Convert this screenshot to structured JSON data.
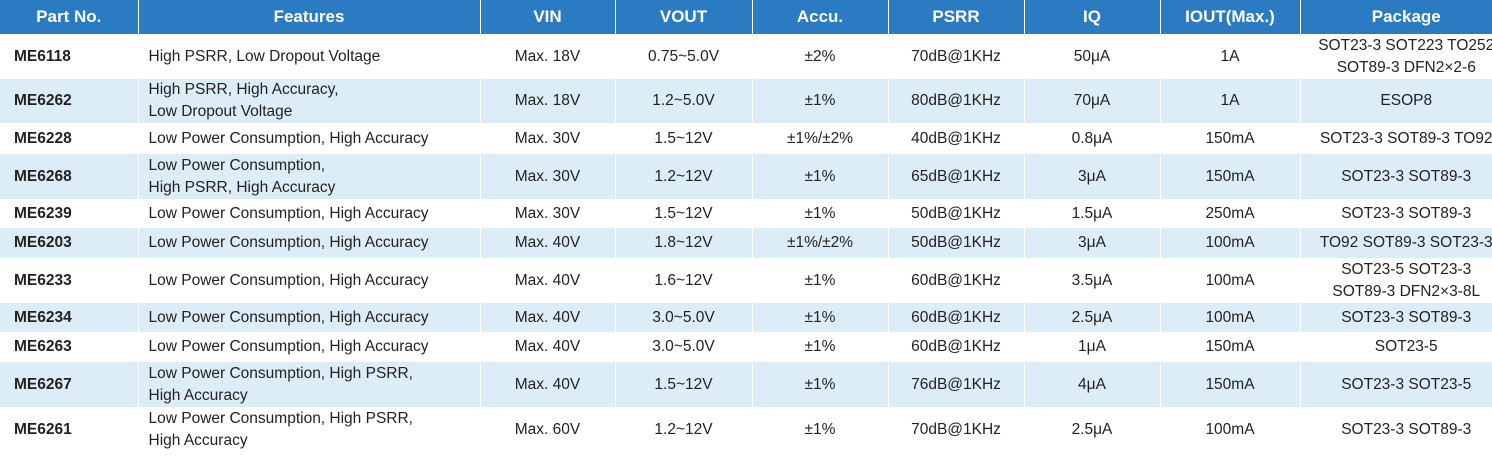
{
  "headers": [
    "Part No.",
    "Features",
    "VIN",
    "VOUT",
    "Accu.",
    "PSRR",
    "IQ",
    "IOUT(Max.)",
    "Package"
  ],
  "rows": [
    {
      "part": "ME6118",
      "features": "High PSRR, Low Dropout Voltage",
      "vin": "Max. 18V",
      "vout": "0.75~5.0V",
      "accu": "±2%",
      "psrr": "70dB@1KHz",
      "iq": "50μA",
      "iout": "1A",
      "package": "SOT23-3 SOT223 TO252\nSOT89-3 DFN2×2-6"
    },
    {
      "part": "ME6262",
      "features": "High PSRR, High Accuracy,\nLow Dropout Voltage",
      "vin": "Max. 18V",
      "vout": "1.2~5.0V",
      "accu": "±1%",
      "psrr": "80dB@1KHz",
      "iq": "70μA",
      "iout": "1A",
      "package": "ESOP8"
    },
    {
      "part": "ME6228",
      "features": "Low Power Consumption, High Accuracy",
      "vin": "Max. 30V",
      "vout": "1.5~12V",
      "accu": "±1%/±2%",
      "psrr": "40dB@1KHz",
      "iq": "0.8μA",
      "iout": "150mA",
      "package": "SOT23-3 SOT89-3 TO92"
    },
    {
      "part": "ME6268",
      "features": "Low Power Consumption,\nHigh PSRR, High Accuracy",
      "vin": "Max. 30V",
      "vout": "1.2~12V",
      "accu": "±1%",
      "psrr": "65dB@1KHz",
      "iq": "3μA",
      "iout": "150mA",
      "package": "SOT23-3 SOT89-3"
    },
    {
      "part": "ME6239",
      "features": "Low Power Consumption, High Accuracy",
      "vin": "Max. 30V",
      "vout": "1.5~12V",
      "accu": "±1%",
      "psrr": "50dB@1KHz",
      "iq": "1.5μA",
      "iout": "250mA",
      "package": "SOT23-3 SOT89-3"
    },
    {
      "part": "ME6203",
      "features": "Low Power Consumption, High Accuracy",
      "vin": "Max. 40V",
      "vout": "1.8~12V",
      "accu": "±1%/±2%",
      "psrr": "50dB@1KHz",
      "iq": "3μA",
      "iout": "100mA",
      "package": "TO92 SOT89-3 SOT23-3"
    },
    {
      "part": "ME6233",
      "features": "Low Power Consumption, High Accuracy",
      "vin": "Max. 40V",
      "vout": "1.6~12V",
      "accu": "±1%",
      "psrr": "60dB@1KHz",
      "iq": "3.5μA",
      "iout": "100mA",
      "package": "SOT23-5 SOT23-3\nSOT89-3 DFN2×3-8L"
    },
    {
      "part": "ME6234",
      "features": "Low Power Consumption, High Accuracy",
      "vin": "Max. 40V",
      "vout": "3.0~5.0V",
      "accu": "±1%",
      "psrr": "60dB@1KHz",
      "iq": "2.5μA",
      "iout": "100mA",
      "package": "SOT23-3 SOT89-3"
    },
    {
      "part": "ME6263",
      "features": "Low Power Consumption, High Accuracy",
      "vin": "Max. 40V",
      "vout": "3.0~5.0V",
      "accu": "±1%",
      "psrr": "60dB@1KHz",
      "iq": "1μA",
      "iout": "150mA",
      "package": "SOT23-5"
    },
    {
      "part": "ME6267",
      "features": "Low Power Consumption, High PSRR,\nHigh Accuracy",
      "vin": "Max. 40V",
      "vout": "1.5~12V",
      "accu": "±1%",
      "psrr": "76dB@1KHz",
      "iq": "4μA",
      "iout": "150mA",
      "package": "SOT23-3 SOT23-5"
    },
    {
      "part": "ME6261",
      "features": "Low Power Consumption, High PSRR,\nHigh Accuracy",
      "vin": "Max. 60V",
      "vout": "1.2~12V",
      "accu": "±1%",
      "psrr": "70dB@1KHz",
      "iq": "2.5μA",
      "iout": "100mA",
      "package": "SOT23-3 SOT89-3"
    }
  ]
}
